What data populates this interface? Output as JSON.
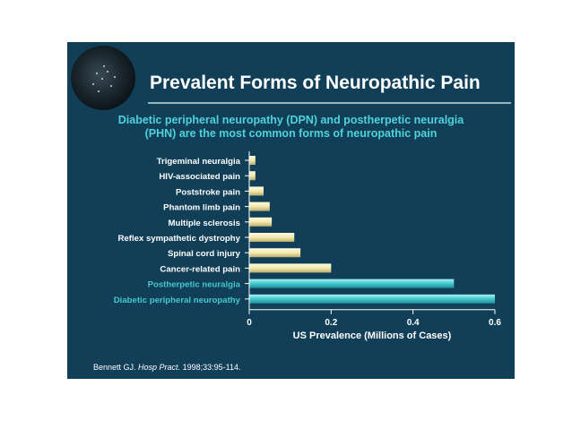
{
  "slide": {
    "title": "Prevalent Forms of Neuropathic Pain",
    "subtitle_line1": "Diabetic peripheral neuropathy (DPN) and postherpetic neuralgia",
    "subtitle_line2": "(PHN) are the most common forms of neuropathic pain",
    "citation_author": "Bennett GJ. ",
    "citation_journal": "Hosp Pract.",
    "citation_rest": " 1998;33:95-114.",
    "background_color": "#113f58",
    "accent_color": "#4fd2dd"
  },
  "chart_data": {
    "type": "bar",
    "orientation": "horizontal",
    "categories": [
      "Trigeminal neuralgia",
      "HIV-associated pain",
      "Poststroke pain",
      "Phantom limb pain",
      "Multiple sclerosis",
      "Reflex sympathetic dystrophy",
      "Spinal cord injury",
      "Cancer-related pain",
      "Postherpetic neuralgia",
      "Diabetic peripheral neuropathy"
    ],
    "values": [
      0.015,
      0.015,
      0.035,
      0.05,
      0.055,
      0.11,
      0.125,
      0.2,
      0.5,
      0.6
    ],
    "highlighted": [
      false,
      false,
      false,
      false,
      false,
      false,
      false,
      false,
      true,
      true
    ],
    "colors": {
      "normal": "#f2e9ad",
      "highlight": "#44c8cf"
    },
    "xlabel": "US Prevalence (Millions of Cases)",
    "ylabel": "",
    "xlim": [
      0,
      0.6
    ],
    "xticks": [
      "0",
      "0.2",
      "0.4",
      "0.6"
    ],
    "xtick_values": [
      0,
      0.2,
      0.4,
      0.6
    ],
    "grid": false
  }
}
